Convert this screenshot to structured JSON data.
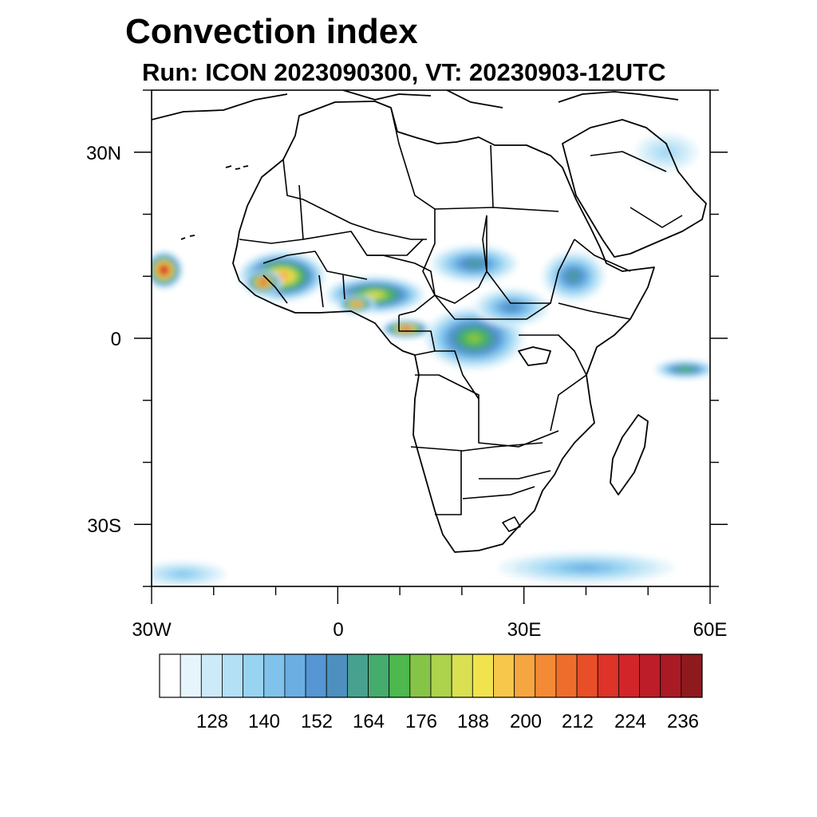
{
  "title": "Convection index",
  "subtitle": "Run: ICON 2023090300,  VT: 20230903-12UTC",
  "map": {
    "region": "Africa",
    "lon_range": [
      -30,
      60
    ],
    "lat_range": [
      -40,
      40
    ],
    "x_ticks": [
      {
        "label": "30W",
        "lon": -30
      },
      {
        "label": "0",
        "lon": 0
      },
      {
        "label": "30E",
        "lon": 30
      },
      {
        "label": "60E",
        "lon": 60
      }
    ],
    "y_ticks": [
      {
        "label": "30N",
        "lat": 30
      },
      {
        "label": "0",
        "lat": 0
      },
      {
        "label": "30S",
        "lat": -30
      }
    ]
  },
  "colorbar": {
    "colors": [
      "#ffffff",
      "#e6f5fb",
      "#cdeaf8",
      "#b4e0f6",
      "#99d3f2",
      "#80c2eb",
      "#6aaee2",
      "#5596d3",
      "#4d8fbf",
      "#47a18e",
      "#45ac6e",
      "#4cb84e",
      "#86c447",
      "#add24c",
      "#d9e052",
      "#f1e34e",
      "#f6c74b",
      "#f6a640",
      "#f38a35",
      "#ef6d2c",
      "#e84f28",
      "#dd3328",
      "#d12529",
      "#bd1d29",
      "#aa1a25",
      "#8f1a1e"
    ],
    "labels": [
      "128",
      "140",
      "152",
      "164",
      "176",
      "188",
      "200",
      "212",
      "224",
      "236"
    ]
  },
  "convection_fields": [
    {
      "name": "west-africa-core",
      "lon": -9,
      "lat": 10,
      "rx": 7,
      "ry": 4,
      "level": 17
    },
    {
      "name": "west-africa-guinea",
      "lon": -12,
      "lat": 9,
      "rx": 3,
      "ry": 2,
      "level": 21
    },
    {
      "name": "nigeria-cameroon",
      "lon": 6,
      "lat": 7,
      "rx": 8,
      "ry": 3,
      "level": 14
    },
    {
      "name": "coast-hotspot",
      "lon": 3,
      "lat": 5.5,
      "rx": 3,
      "ry": 1.5,
      "level": 19
    },
    {
      "name": "gabon-hotspot",
      "lon": 11,
      "lat": 1.5,
      "rx": 4,
      "ry": 1.5,
      "level": 20
    },
    {
      "name": "congo-basin",
      "lon": 22,
      "lat": 0,
      "rx": 8,
      "ry": 5,
      "level": 12
    },
    {
      "name": "sahel-central",
      "lon": 22,
      "lat": 12,
      "rx": 7,
      "ry": 3,
      "level": 9
    },
    {
      "name": "ethiopia",
      "lon": 38,
      "lat": 10,
      "rx": 5,
      "ry": 4,
      "level": 9
    },
    {
      "name": "atlantic-storm",
      "lon": -28,
      "lat": 11,
      "rx": 3,
      "ry": 3,
      "level": 23
    },
    {
      "name": "indian-ocean-band",
      "lon": 56,
      "lat": -5,
      "rx": 5,
      "ry": 1.5,
      "level": 11
    },
    {
      "name": "southern-ocean-band",
      "lon": 40,
      "lat": -37,
      "rx": 14,
      "ry": 2.5,
      "level": 6
    },
    {
      "name": "south-atlantic-band",
      "lon": -25,
      "lat": -38,
      "rx": 7,
      "ry": 2,
      "level": 5
    },
    {
      "name": "arabia-north",
      "lon": 53,
      "lat": 30,
      "rx": 5,
      "ry": 3,
      "level": 4
    },
    {
      "name": "east-africa-rift",
      "lon": 28,
      "lat": 5,
      "rx": 6,
      "ry": 3,
      "level": 8
    }
  ]
}
